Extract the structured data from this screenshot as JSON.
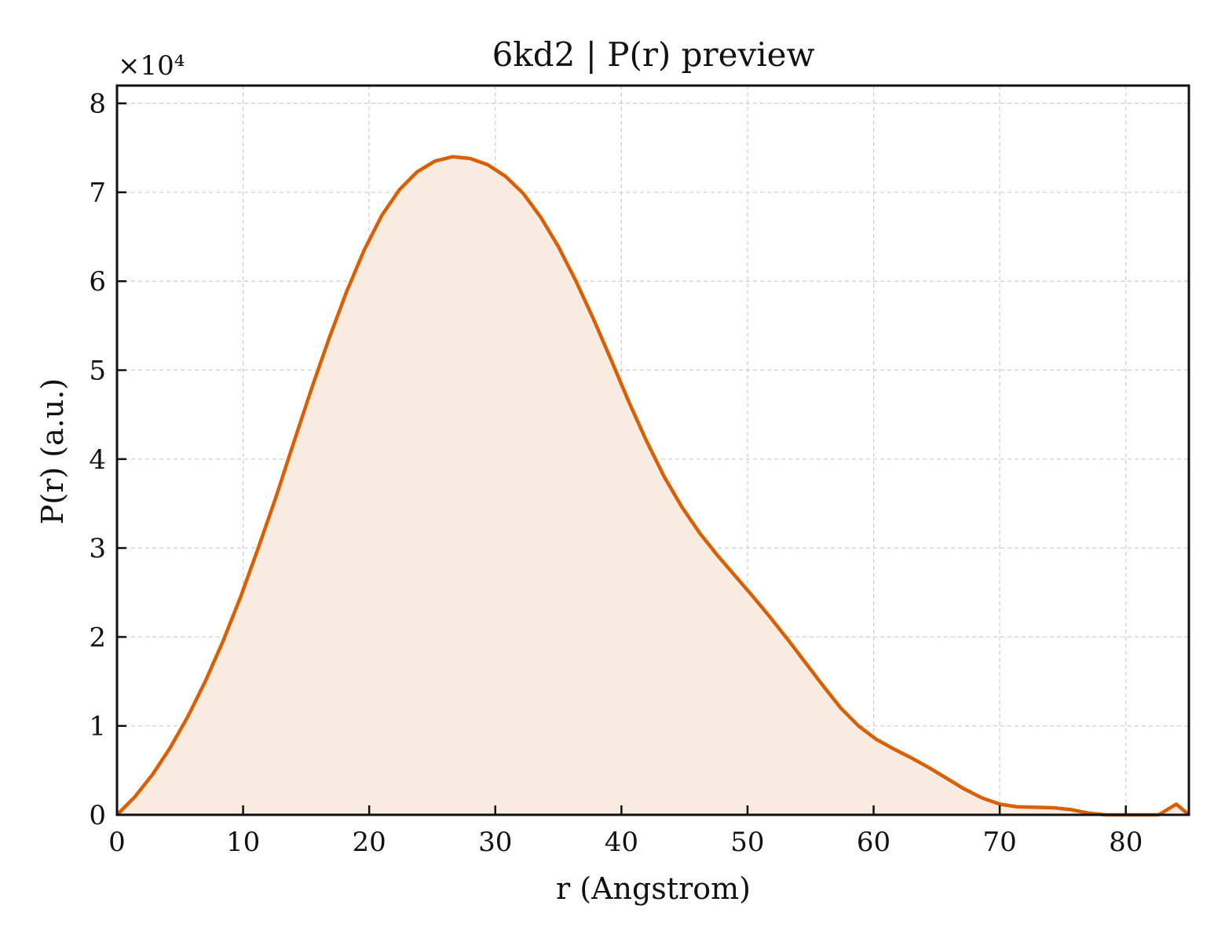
{
  "chart_data": {
    "type": "area",
    "title": "6kd2 | P(r) preview",
    "xlabel": "r (Angstrom)",
    "ylabel": "P(r) (a.u.)",
    "y_multiplier_label": "×10⁴",
    "xlim": [
      0,
      85
    ],
    "ylim": [
      0,
      82000
    ],
    "x_ticks": [
      0,
      10,
      20,
      30,
      40,
      50,
      60,
      70,
      80
    ],
    "y_ticks": [
      0,
      10000,
      20000,
      30000,
      40000,
      50000,
      60000,
      70000,
      80000
    ],
    "y_tick_labels": [
      "0",
      "1",
      "2",
      "3",
      "4",
      "5",
      "6",
      "7",
      "8"
    ],
    "grid": true,
    "line_color": "#d95f02",
    "fill_color": "#f9ebe0",
    "series": [
      {
        "x": [
          0,
          1.4,
          2.8,
          4.2,
          5.6,
          7.0,
          8.4,
          9.8,
          11.2,
          12.6,
          14.0,
          15.4,
          16.8,
          18.2,
          19.6,
          21.0,
          22.4,
          23.8,
          25.2,
          26.6,
          28.0,
          29.4,
          30.8,
          32.2,
          33.6,
          35.0,
          36.4,
          37.8,
          39.2,
          40.6,
          42.0,
          43.4,
          44.8,
          46.2,
          47.6,
          49.0,
          50.4,
          51.8,
          53.2,
          54.6,
          56.0,
          57.4,
          58.8,
          60.2,
          61.6,
          63.0,
          64.4,
          65.8,
          67.2,
          68.6,
          70.0,
          71.4,
          72.8,
          74.2,
          75.6,
          77.0,
          78.4,
          79.8,
          81.2,
          82.6,
          84.0,
          85.0
        ],
        "y": [
          0,
          2000,
          4500,
          7500,
          11000,
          15000,
          19500,
          24500,
          30000,
          35700,
          41800,
          47800,
          53500,
          58800,
          63500,
          67400,
          70300,
          72300,
          73500,
          74000,
          73800,
          73100,
          71800,
          69900,
          67200,
          63900,
          60000,
          55700,
          51100,
          46400,
          42000,
          38000,
          34600,
          31700,
          29200,
          26900,
          24600,
          22200,
          19700,
          17100,
          14500,
          12000,
          10000,
          8500,
          7400,
          6400,
          5300,
          4100,
          2900,
          1900,
          1200,
          900,
          850,
          800,
          600,
          200,
          0,
          0,
          0,
          0,
          1200,
          0
        ]
      }
    ]
  }
}
